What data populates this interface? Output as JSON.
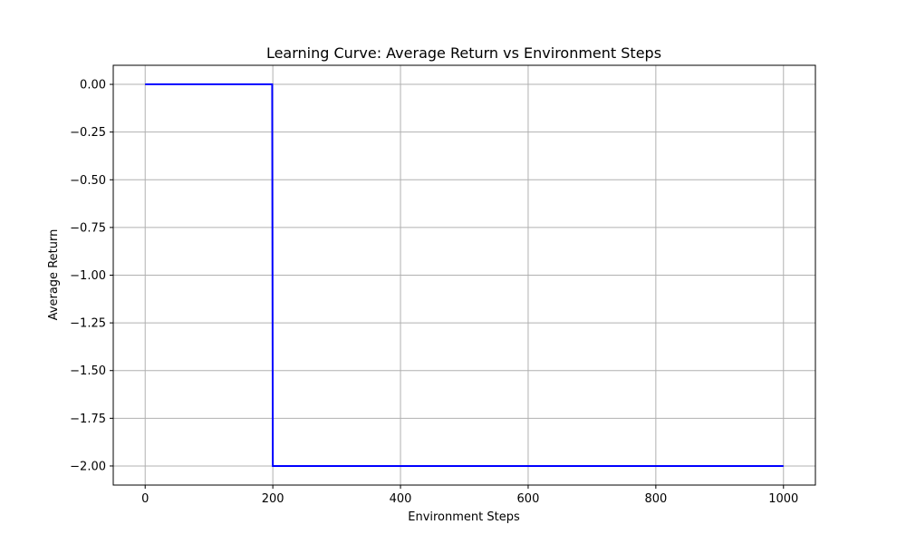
{
  "chart_data": {
    "type": "line",
    "title": "Learning Curve: Average Return vs Environment Steps",
    "xlabel": "Environment Steps",
    "ylabel": "Average Return",
    "xlim": [
      -50,
      1050
    ],
    "ylim": [
      -2.1,
      0.1
    ],
    "x_ticks": [
      0,
      200,
      400,
      600,
      800,
      1000
    ],
    "x_tick_labels": [
      "0",
      "200",
      "400",
      "600",
      "800",
      "1000"
    ],
    "y_ticks": [
      0.0,
      -0.25,
      -0.5,
      -0.75,
      -1.0,
      -1.25,
      -1.5,
      -1.75,
      -2.0
    ],
    "y_tick_labels": [
      "0.00",
      "−0.25",
      "−0.50",
      "−0.75",
      "−1.00",
      "−1.25",
      "−1.50",
      "−1.75",
      "−2.00"
    ],
    "grid": true,
    "series": [
      {
        "color": "#0000ff",
        "x": [
          0,
          199,
          200,
          1000
        ],
        "y": [
          0,
          0,
          -2,
          -2
        ]
      }
    ]
  }
}
